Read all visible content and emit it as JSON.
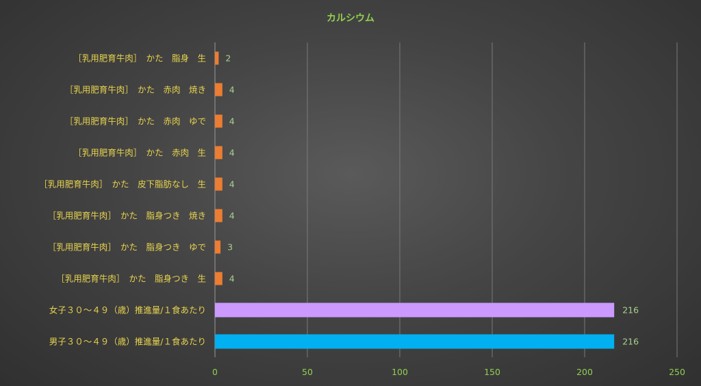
{
  "chart_data": {
    "type": "bar",
    "orientation": "horizontal",
    "title": "カルシウム",
    "categories": [
      "［乳用肥育牛肉］　かた　脂身　生",
      "［乳用肥育牛肉］　かた　赤肉　焼き",
      "［乳用肥育牛肉］　かた　赤肉　ゆで",
      "［乳用肥育牛肉］　かた　赤肉　生",
      "［乳用肥育牛肉］　かた　皮下脂肪なし　生",
      "［乳用肥育牛肉］　かた　脂身つき　焼き",
      "［乳用肥育牛肉］　かた　脂身つき　ゆで",
      "［乳用肥育牛肉］　かた　脂身つき　生",
      "女子３０～４９（歳）推進量/１食あたり",
      "男子３０～４９（歳）推進量/１食あたり"
    ],
    "values": [
      2,
      4,
      4,
      4,
      4,
      4,
      3,
      4,
      216,
      216
    ],
    "value_labels": [
      "2",
      "4",
      "4",
      "4",
      "4",
      "4",
      "3",
      "4",
      "216",
      "216"
    ],
    "colors": [
      "#ed7d31",
      "#ed7d31",
      "#ed7d31",
      "#ed7d31",
      "#ed7d31",
      "#ed7d31",
      "#ed7d31",
      "#ed7d31",
      "#cc99ff",
      "#00b0f0"
    ],
    "xlim": [
      0,
      250
    ],
    "xticks": [
      "0",
      "50",
      "100",
      "150",
      "200",
      "250"
    ],
    "grid": true,
    "legend": "none",
    "xlabel": "",
    "ylabel": ""
  }
}
